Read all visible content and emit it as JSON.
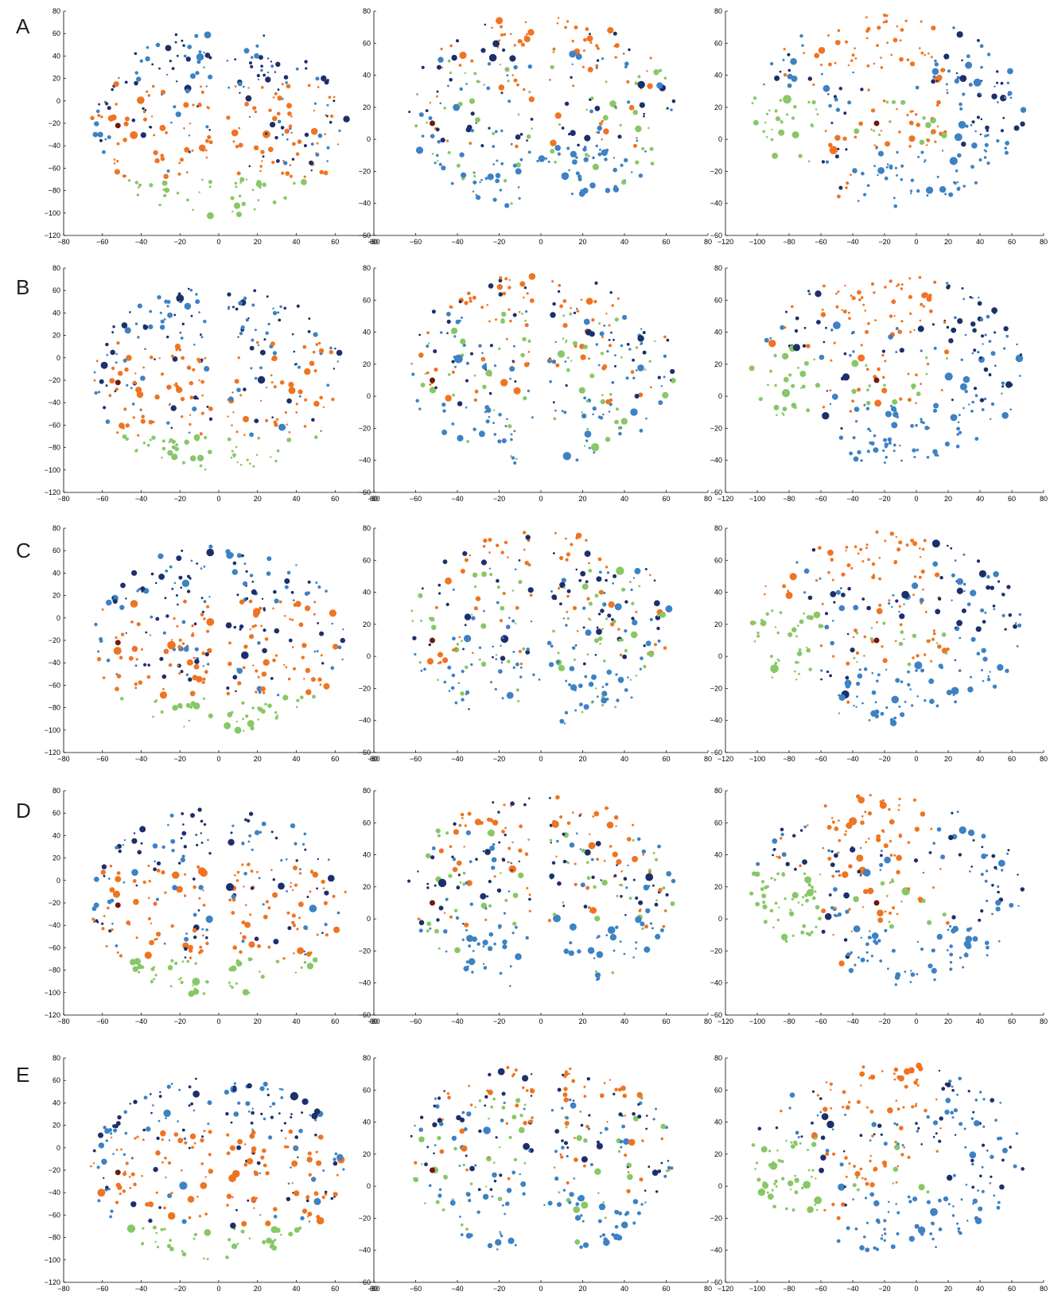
{
  "figure": {
    "row_labels": [
      "A",
      "B",
      "C",
      "D",
      "E"
    ]
  },
  "palette": {
    "orange": "#ef7422",
    "green": "#88c766",
    "lightblue": "#3d82c4",
    "navy": "#1d2f6b",
    "darkred": "#6e1a10",
    "axis": "#000000"
  },
  "chart_data": [
    {
      "view": "axial",
      "type": "scatter",
      "xlim": [
        -80,
        80
      ],
      "ylim": [
        -120,
        80
      ],
      "xticks": [
        -80,
        -60,
        -40,
        -20,
        0,
        20,
        40,
        60,
        80
      ],
      "yticks": [
        -120,
        -100,
        -80,
        -60,
        -40,
        -20,
        0,
        20,
        40,
        60,
        80
      ],
      "grid": false
    },
    {
      "view": "coronal",
      "type": "scatter",
      "xlim": [
        -80,
        80
      ],
      "ylim": [
        -60,
        80
      ],
      "xticks": [
        -80,
        -60,
        -40,
        -20,
        0,
        20,
        40,
        60,
        80
      ],
      "yticks": [
        -60,
        -40,
        -20,
        0,
        20,
        40,
        60,
        80
      ],
      "grid": false
    },
    {
      "view": "sagittal",
      "type": "scatter",
      "xlim": [
        -120,
        80
      ],
      "ylim": [
        -60,
        80
      ],
      "xticks": [
        -120,
        -100,
        -80,
        -60,
        -40,
        -20,
        0,
        20,
        40,
        60,
        80
      ],
      "yticks": [
        -60,
        -40,
        -20,
        0,
        20,
        40,
        60,
        80
      ],
      "grid": false
    }
  ]
}
